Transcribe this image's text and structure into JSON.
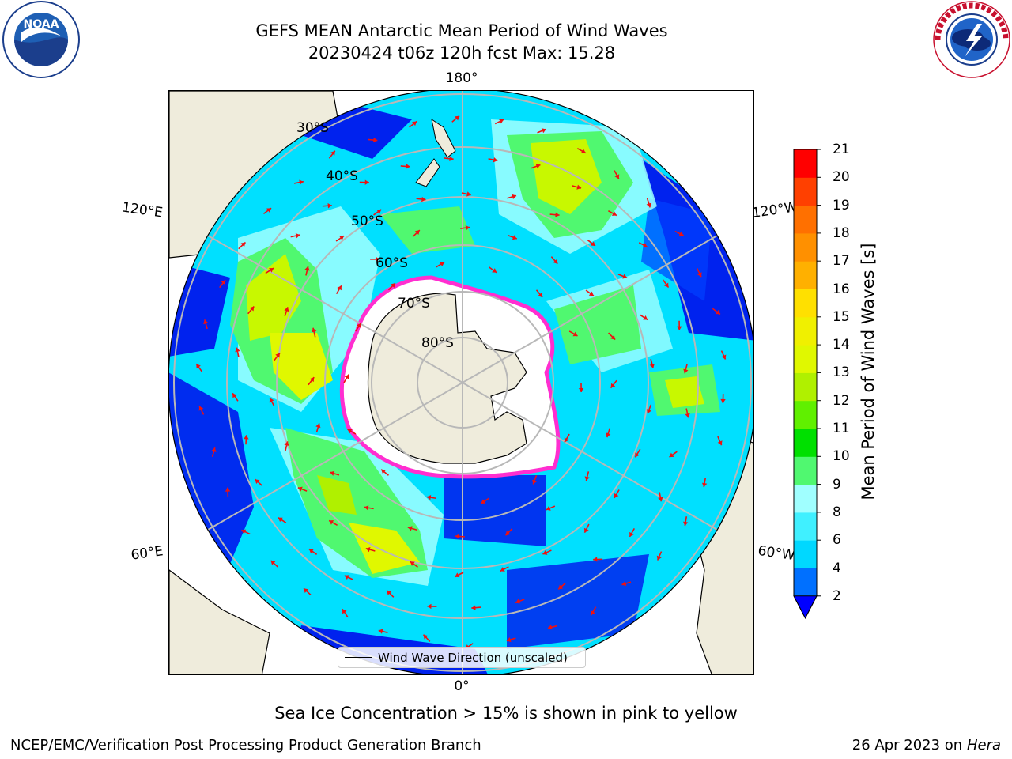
{
  "title_line1": "GEFS MEAN Antarctic Mean Period of Wind Waves",
  "title_line2": "20230424 t06z 120h fcst   Max: 15.28",
  "lon_labels": {
    "top": "180°",
    "bottom": "0°",
    "left_upper": "120°E",
    "right_upper": "120°W",
    "left_lower": "60°E",
    "right_lower": "60°W"
  },
  "lat_labels": [
    "30°S",
    "40°S",
    "50°S",
    "60°S",
    "70°S",
    "80°S"
  ],
  "legend_label": "Wind Wave Direction (unscaled)",
  "colorbar": {
    "label": "Mean Period of Wind Waves [s]",
    "ticks": [
      "2",
      "4",
      "6",
      "8",
      "9",
      "10",
      "11",
      "12",
      "13",
      "14",
      "15",
      "16",
      "17",
      "18",
      "19",
      "20",
      "21"
    ],
    "colors": [
      "#0070ff",
      "#00d8ff",
      "#40f0ff",
      "#a0ffff",
      "#50f870",
      "#00e000",
      "#60f000",
      "#b0f000",
      "#e0f800",
      "#f0f000",
      "#ffe000",
      "#ffb000",
      "#ff9000",
      "#ff7000",
      "#ff4000",
      "#ff0000"
    ],
    "extend_color": "#0000ff"
  },
  "colors": {
    "land": "#efecdc",
    "ice_edge": "#ff2ed0",
    "arrows": "#ee1111",
    "grid": "#b8b8b8",
    "ocean_low": "#0022ee",
    "ocean_mid": "#00e0ff"
  },
  "note": "Sea Ice Concentration > 15% is shown in pink to yellow",
  "footer_left": "NCEP/EMC/Verification Post Processing Product Generation Branch",
  "footer_right_prefix": "26 Apr 2023 on ",
  "footer_right_host": "Hera",
  "logos": {
    "noaa_text": "NOAA",
    "nws_text": "NATIONAL WEATHER SERVICE"
  }
}
